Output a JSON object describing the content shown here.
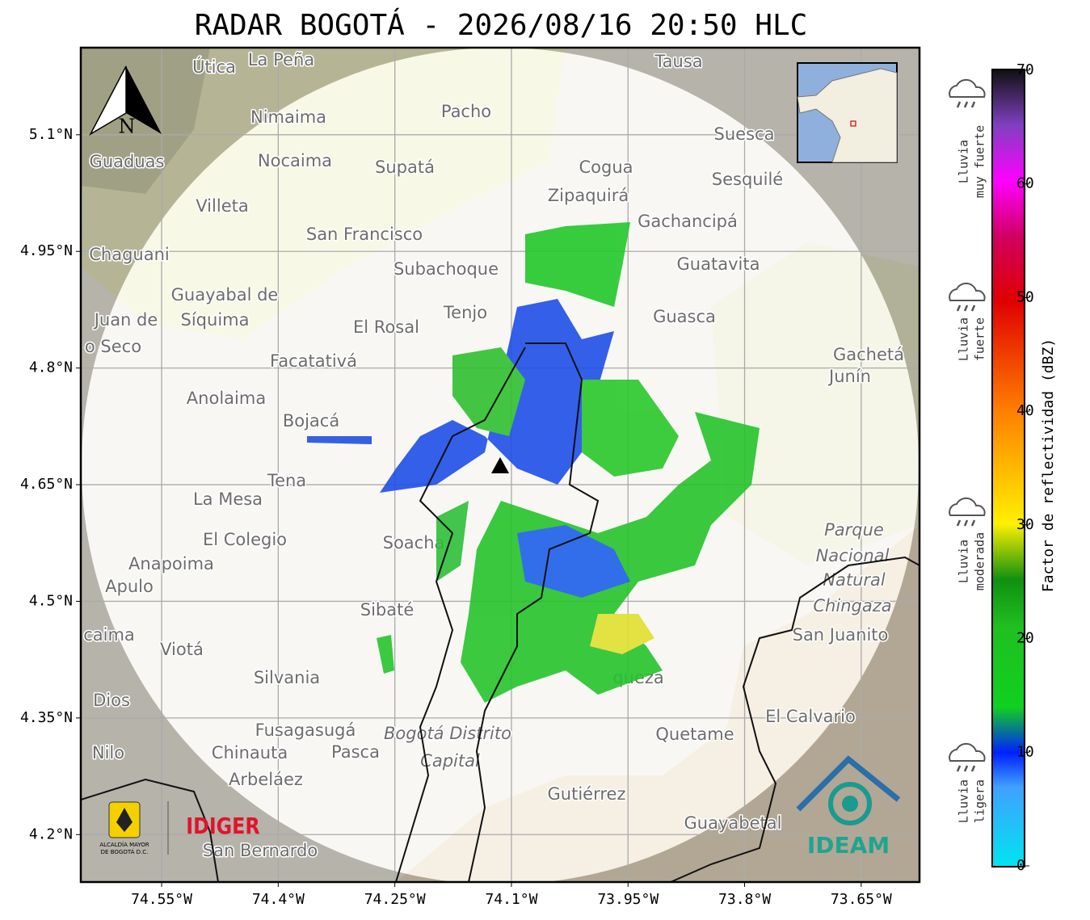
{
  "title": "RADAR BOGOTÁ - 2026/08/16 20:50 HLC",
  "map": {
    "xlim": [
      -74.654,
      -73.575
    ],
    "ylim": [
      4.139,
      5.212
    ],
    "grid": true,
    "xticks": [
      {
        "value": -74.55,
        "label": "74.55°W"
      },
      {
        "value": -74.4,
        "label": "74.4°W"
      },
      {
        "value": -74.25,
        "label": "74.25°W"
      },
      {
        "value": -74.1,
        "label": "74.1°W"
      },
      {
        "value": -73.95,
        "label": "73.95°W"
      },
      {
        "value": -73.8,
        "label": "73.8°W"
      },
      {
        "value": -73.65,
        "label": "73.65°W"
      }
    ],
    "yticks": [
      {
        "value": 5.1,
        "label": "5.1°N"
      },
      {
        "value": 4.95,
        "label": "4.95°N"
      },
      {
        "value": 4.8,
        "label": "4.8°N"
      },
      {
        "value": 4.65,
        "label": "4.65°N"
      },
      {
        "value": 4.5,
        "label": "4.5°N"
      },
      {
        "value": 4.35,
        "label": "4.35°N"
      },
      {
        "value": 4.2,
        "label": "4.2°N"
      }
    ]
  },
  "colorbar": {
    "label": "Factor de reflectividad (dBZ)",
    "lim": [
      0,
      70
    ],
    "ticks": [
      0,
      10,
      20,
      30,
      40,
      50,
      60,
      70
    ]
  },
  "rain_classes": [
    [
      "Lluvia",
      "muy fuerte"
    ],
    [
      "Lluvia",
      "fuerte"
    ],
    [
      "Lluvia",
      "moderada"
    ],
    [
      "Lluvia",
      "ligera"
    ]
  ],
  "north": "N",
  "places": [
    "Útica",
    "La Peña",
    "Tausa",
    "Nimaima",
    "Pacho",
    "Suesca",
    "Guaduas",
    "Nocaima",
    "Supatá",
    "Cogua",
    "Sesquilé",
    "Zipaquirá",
    "Gachancipá",
    "Villeta",
    "San Francisco",
    "Chaguani",
    "Subachoque",
    "Guatavita",
    "Guayabal de",
    "Síquima",
    "Tenjo",
    "Guasca",
    "Juan de",
    "o Seco",
    "El Rosal",
    "Facatativá",
    "Gachetá",
    "Junín",
    "Anolaima",
    "Bojacá",
    "Tena",
    "La Mesa",
    "El Colegio",
    "Soacha",
    "Anapoima",
    "Apulo",
    "Parque",
    "Nacional",
    "Natural",
    "Chingaza",
    "Sibaté",
    "San Juanito",
    "Viotá",
    "Silvania",
    "queza",
    "Dios",
    "El Calvario",
    "Fusagasugá",
    "Quetame",
    "Bogotá Distrito",
    "Capital",
    "Nilo",
    "Chinauta",
    "Pasca",
    "Arbeláez",
    "Gutiérrez",
    "Guayabetal",
    "San Bernardo",
    "caima"
  ],
  "logos": {
    "alcaldia": [
      "ALCALDÍA MAYOR",
      "DE BOGOTÁ D.C."
    ],
    "idiger": "IDIGER",
    "ideam": "IDEAM"
  }
}
